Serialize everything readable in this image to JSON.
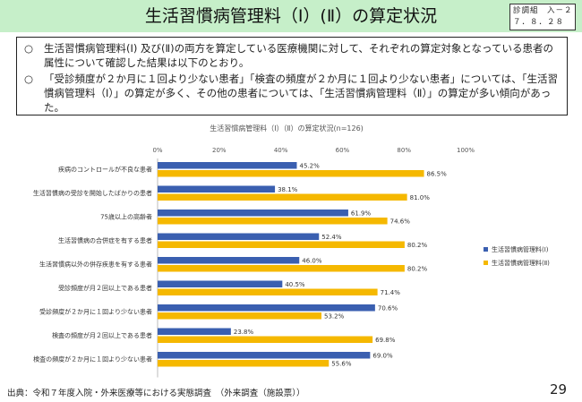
{
  "header": {
    "title": "生活習慣病管理料（Ⅰ）(Ⅱ）の算定状況",
    "doc_code_line1": "診調組　入－２",
    "doc_code_line2": "７．８．２８"
  },
  "summary": {
    "bullet": "○",
    "items": [
      "生活習慣病管理料(Ⅰ) 及び(Ⅱ)の両方を算定している医療機関に対して、それぞれの算定対象となっている患者の属性について確認した結果は以下のとおり。",
      "「受診頻度が２か月に１回より少ない患者」「検査の頻度が２か月に１回より少ない患者」については、「生活習慣病管理料（Ⅰ）」の算定が多く、その他の患者については、「生活習慣病管理料（Ⅱ）」の算定が多い傾向があった。"
    ]
  },
  "colors": {
    "series1": "#3a5fb0",
    "series2": "#f5b800",
    "header_bg": "#c6efc9"
  },
  "chart_data": {
    "type": "bar",
    "orientation": "horizontal",
    "title": "生活習慣病管理料（Ⅰ）（Ⅱ）の算定状況(n=126)",
    "xlim": [
      0,
      100
    ],
    "x_ticks": [
      "0%",
      "20%",
      "40%",
      "60%",
      "80%",
      "100%"
    ],
    "grid": false,
    "legend_position": "right",
    "categories": [
      "疾病のコントロールが不良な患者",
      "生活習慣病の受診を開始したばかりの患者",
      "75歳以上の高齢者",
      "生活習慣病の合併症を有する患者",
      "生活習慣病以外の併存疾患を有する患者",
      "受診頻度が月２回以上である患者",
      "受診頻度が２か月に１回より少ない患者",
      "検査の頻度が月２回以上である患者",
      "検査の頻度が２か月に１回より少ない患者"
    ],
    "series": [
      {
        "name": "生活習慣病管理料(Ⅰ)",
        "values": [
          45.2,
          38.1,
          61.9,
          52.4,
          46.0,
          40.5,
          70.6,
          23.8,
          69.0
        ],
        "labels": [
          "45.2%",
          "38.1%",
          "61.9%",
          "52.4%",
          "46.0%",
          "40.5%",
          "70.6%",
          "23.8%",
          "69.0%"
        ]
      },
      {
        "name": "生活習慣病管理料(Ⅱ)",
        "values": [
          86.5,
          81.0,
          74.6,
          80.2,
          80.2,
          71.4,
          53.2,
          69.8,
          55.6
        ],
        "labels": [
          "86.5%",
          "81.0%",
          "74.6%",
          "80.2%",
          "80.2%",
          "71.4%",
          "53.2%",
          "69.8%",
          "55.6%"
        ]
      }
    ]
  },
  "footer": {
    "source": "出典：令和７年度入院・外来医療等における実態調査　（外来調査（施設票））",
    "page_number": "29"
  }
}
